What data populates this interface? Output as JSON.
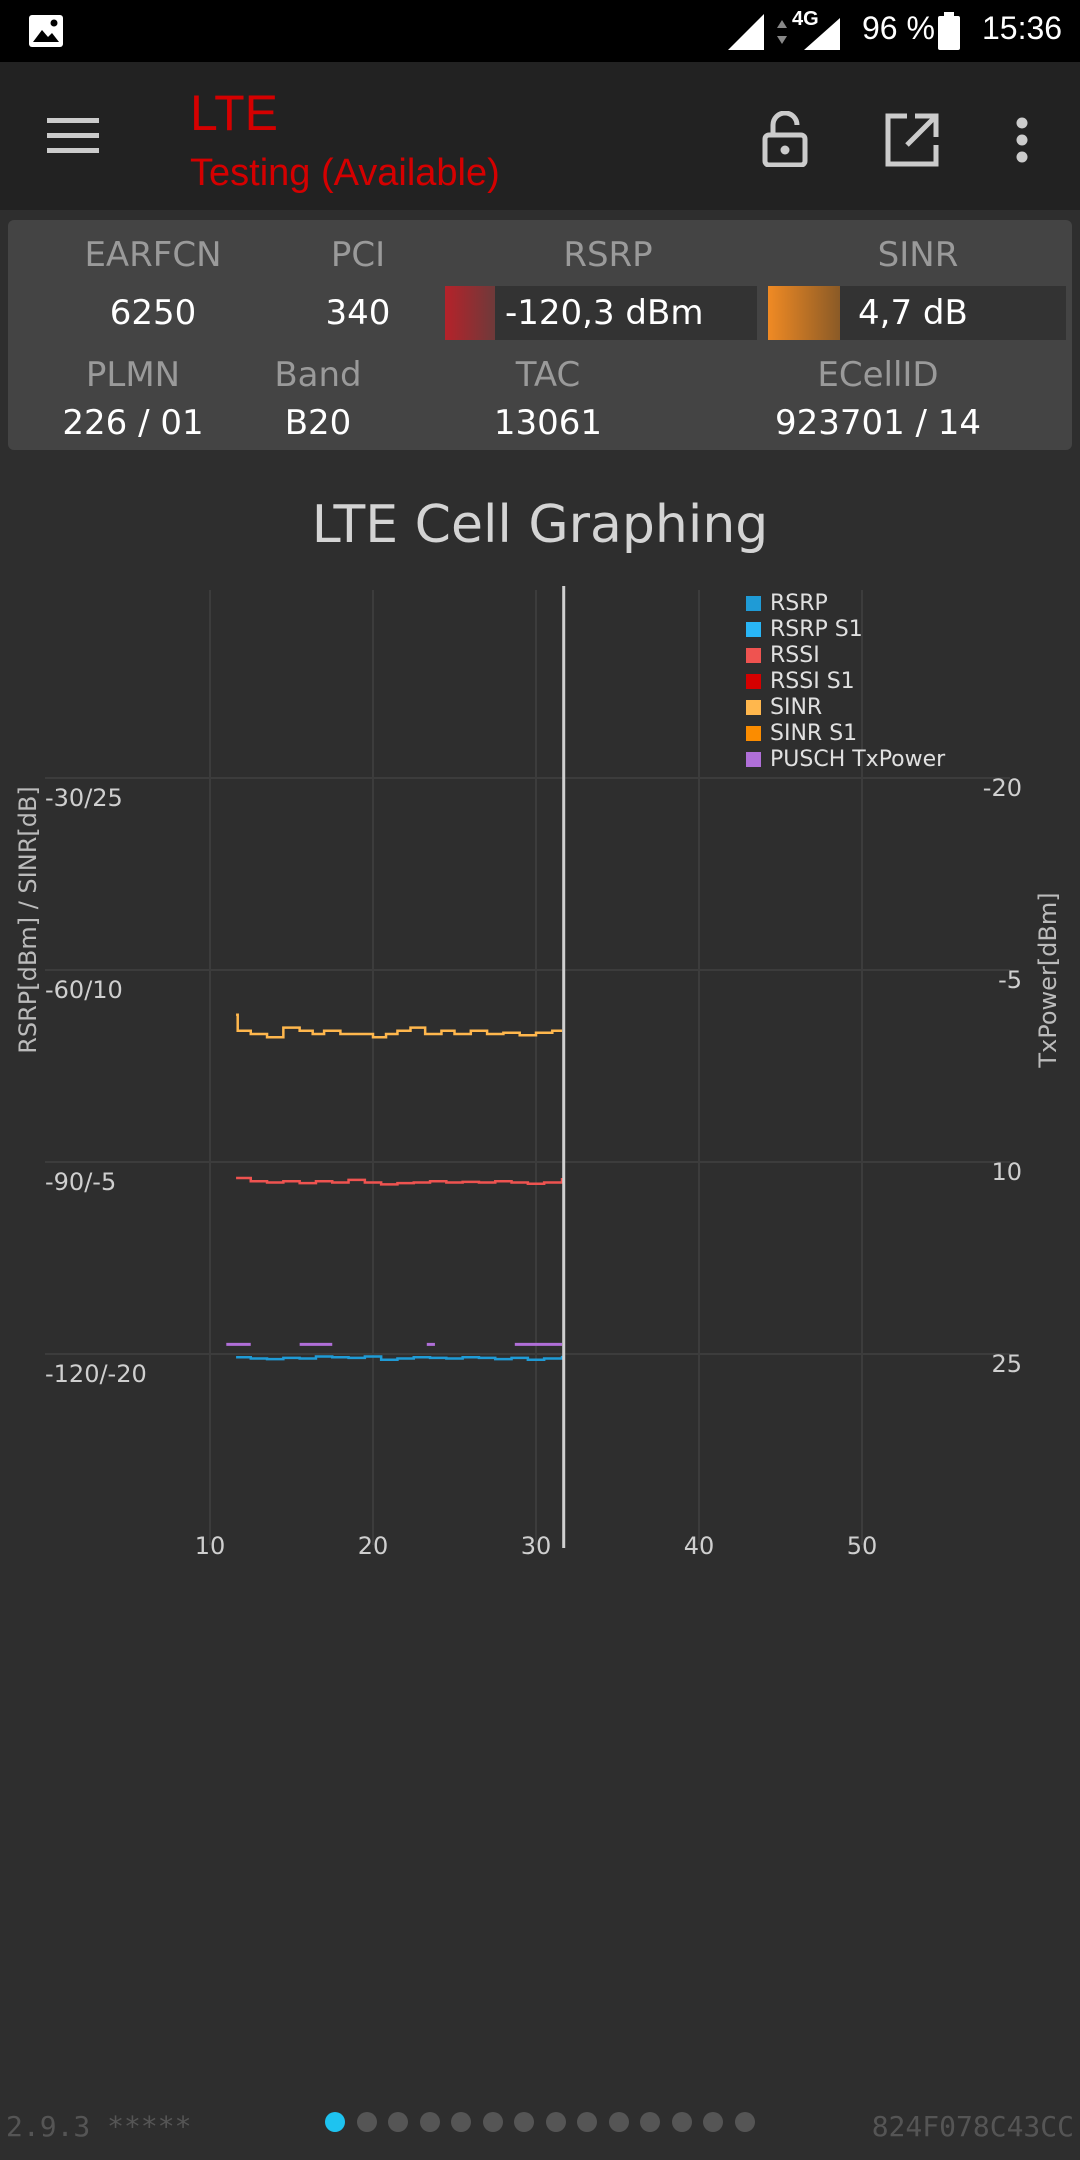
{
  "status_bar": {
    "network": "4G",
    "battery": "96 %",
    "time": "15:36"
  },
  "app_bar": {
    "title": "LTE",
    "subtitle": "Testing (Available)",
    "title_color": "#d50000"
  },
  "cell_info": {
    "earfcn_label": "EARFCN",
    "earfcn": "6250",
    "pci_label": "PCI",
    "pci": "340",
    "rsrp_label": "RSRP",
    "rsrp": "-120,3 dBm",
    "rsrp_color": "#c0282b",
    "sinr_label": "SINR",
    "sinr": "4,7 dB",
    "sinr_color": "#f08a24",
    "plmn_label": "PLMN",
    "plmn": "226 / 01",
    "band_label": "Band",
    "band": "B20",
    "tac_label": "TAC",
    "tac": "13061",
    "ecellid_label": "ECellID",
    "ecellid": "923701 / 14"
  },
  "chart_data": {
    "type": "line",
    "title": "LTE Cell Graphing",
    "ylabel": "RSRP[dBm] / SINR[dB]",
    "y2label": "TxPower[dBm]",
    "x_ticks": [
      "10",
      "20",
      "30",
      "40",
      "50"
    ],
    "xlim": [
      10,
      55
    ],
    "y_ticks_left": [
      "-30/25",
      "-60/10",
      "-90/-5",
      "-120/-20"
    ],
    "y_ticks_right": [
      "-20",
      "-5",
      "10",
      "25"
    ],
    "ylim": [
      -140,
      -10
    ],
    "cursor_x": 31.7,
    "grid": true,
    "legend_position": "top-right",
    "legend": [
      {
        "name": "RSRP",
        "color": "#1f9bd6"
      },
      {
        "name": "RSRP S1",
        "color": "#29b6f6"
      },
      {
        "name": "RSSI",
        "color": "#ef5350"
      },
      {
        "name": "RSSI S1",
        "color": "#d50000"
      },
      {
        "name": "SINR",
        "color": "#ffb74d"
      },
      {
        "name": "SINR S1",
        "color": "#fb8c00"
      },
      {
        "name": "PUSCH TxPower",
        "color": "#b06fd8"
      }
    ],
    "series": [
      {
        "name": "SINR",
        "color": "#ffb74d",
        "x": [
          11.6,
          11.7,
          12.5,
          13.5,
          14.5,
          15.5,
          16.3,
          17.0,
          18.0,
          19.0,
          20.0,
          20.8,
          21.5,
          22.3,
          23.2,
          24.2,
          25.0,
          26.0,
          27.0,
          28.0,
          29.0,
          30.0,
          31.0,
          31.6
        ],
        "y": [
          -67,
          -69.5,
          -70,
          -70.5,
          -69,
          -69.5,
          -70,
          -69.5,
          -70,
          -70,
          -70.5,
          -70,
          -69.5,
          -69,
          -70,
          -69.5,
          -70,
          -69.5,
          -70,
          -69.8,
          -70.2,
          -69.8,
          -69.5,
          -69.5
        ]
      },
      {
        "name": "RSSI",
        "color": "#ef5350",
        "x": [
          11.6,
          12.5,
          13.5,
          14.5,
          15.5,
          16.5,
          17.5,
          18.5,
          19.5,
          20.5,
          21.5,
          22.5,
          23.5,
          24.5,
          25.5,
          26.5,
          27.5,
          28.5,
          29.5,
          30.5,
          31.6
        ],
        "y": [
          -92.5,
          -93,
          -93.2,
          -93,
          -93.3,
          -93,
          -93.2,
          -92.8,
          -93.2,
          -93.5,
          -93.3,
          -93.2,
          -93.0,
          -93.2,
          -93.1,
          -93.2,
          -93.0,
          -93.2,
          -93.4,
          -93.2,
          -92.5
        ]
      },
      {
        "name": "RSRP",
        "color": "#1f9bd6",
        "x": [
          11.6,
          12.5,
          13.5,
          14.5,
          15.5,
          16.5,
          17.5,
          18.5,
          19.5,
          20.5,
          21.5,
          22.5,
          23.5,
          24.5,
          25.5,
          26.5,
          27.5,
          28.5,
          29.5,
          30.5,
          31.6
        ],
        "y": [
          -120.5,
          -120.7,
          -120.8,
          -120.6,
          -120.7,
          -120.4,
          -120.5,
          -120.6,
          -120.4,
          -120.9,
          -120.7,
          -120.5,
          -120.6,
          -120.7,
          -120.5,
          -120.6,
          -120.8,
          -120.6,
          -120.9,
          -120.7,
          -120.3
        ]
      }
    ],
    "txpower_segments": [
      [
        11.0,
        12.5
      ],
      [
        15.5,
        17.5
      ],
      [
        23.3,
        23.8
      ],
      [
        28.7,
        31.6
      ]
    ],
    "txpower_value": 23
  },
  "footer": {
    "version": "2.9.3 *****",
    "device_id": "824F078C43CC",
    "page_count": 14,
    "active_page": 0
  }
}
